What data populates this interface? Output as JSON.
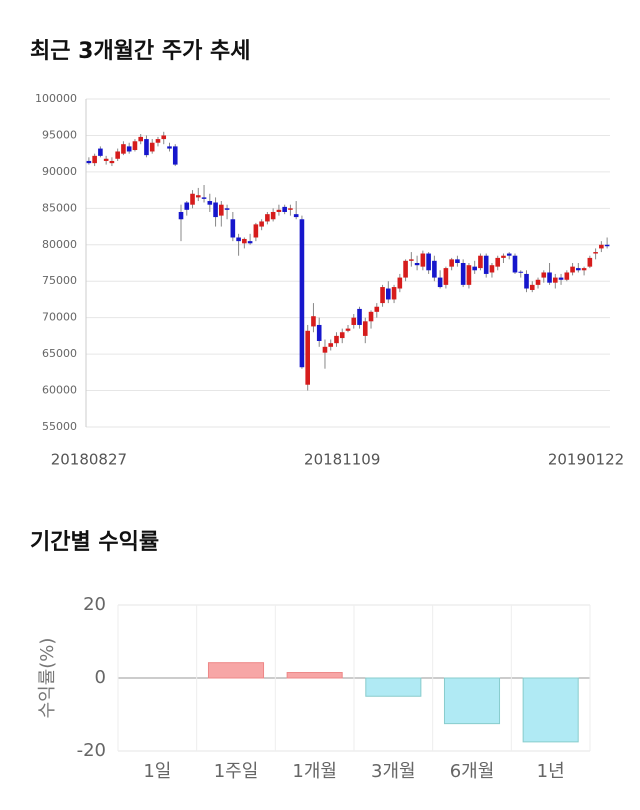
{
  "chart_data": [
    {
      "type": "candlestick",
      "title": "최근 3개월간 주가 추세",
      "categories": [
        "20180827",
        null,
        null,
        null,
        null,
        null,
        null,
        null,
        null,
        null,
        null,
        null,
        null,
        null,
        null,
        null,
        null,
        null,
        null,
        null,
        null,
        null,
        null,
        null,
        null,
        null,
        null,
        null,
        null,
        null,
        null,
        null,
        null,
        null,
        null,
        null,
        null,
        null,
        null,
        null,
        null,
        null,
        null,
        null,
        "20181109",
        null,
        null,
        null,
        null,
        null,
        null,
        null,
        null,
        null,
        null,
        null,
        null,
        null,
        null,
        null,
        null,
        null,
        null,
        null,
        null,
        null,
        null,
        null,
        null,
        null,
        null,
        null,
        null,
        null,
        null,
        null,
        null,
        null,
        null,
        null,
        null,
        null,
        null,
        null,
        null,
        null,
        null,
        null,
        null,
        null,
        "20190122"
      ],
      "open": [
        91500,
        91200,
        93200,
        91500,
        91200,
        91800,
        92500,
        93500,
        93000,
        94200,
        94500,
        92800,
        94000,
        94500,
        93500,
        93500,
        84500,
        85800,
        85500,
        86500,
        86500,
        86000,
        85800,
        84000,
        85000,
        83500,
        81000,
        80200,
        80500,
        81000,
        82500,
        83200,
        83500,
        84500,
        85200,
        84800,
        84200,
        83500,
        60800,
        68800,
        69000,
        65200,
        66000,
        66500,
        67200,
        68200,
        69000,
        71200,
        67500,
        69500,
        70800,
        72000,
        74000,
        72500,
        74000,
        75500,
        77800,
        77500,
        77000,
        78800,
        77800,
        75500,
        74500,
        77000,
        78000,
        77500,
        74500,
        77000,
        76800,
        78500,
        76200,
        77000,
        78200,
        78800,
        78500,
        76300,
        76000,
        73800,
        74500,
        75500,
        76200,
        74800,
        75500,
        75200,
        76200,
        76800,
        76500,
        77000,
        78800,
        79500,
        80000
      ],
      "high": [
        92000,
        92500,
        93500,
        92200,
        92000,
        93200,
        94200,
        94000,
        94500,
        95200,
        95000,
        94500,
        94800,
        95500,
        94000,
        93800,
        85500,
        86000,
        87500,
        87800,
        88200,
        87000,
        86500,
        86000,
        85500,
        84500,
        81500,
        81000,
        81500,
        83000,
        83500,
        84500,
        85000,
        85500,
        85500,
        85500,
        86000,
        84000,
        69000,
        72000,
        70000,
        67000,
        67000,
        68000,
        68500,
        69000,
        70500,
        71500,
        70000,
        71000,
        72000,
        74500,
        75000,
        74500,
        76000,
        78000,
        79000,
        78500,
        79200,
        79000,
        78500,
        76500,
        77000,
        78200,
        78500,
        78000,
        77500,
        77800,
        78800,
        78800,
        77500,
        78500,
        78800,
        79000,
        78800,
        76500,
        76500,
        75000,
        75500,
        76500,
        77500,
        76000,
        76000,
        76500,
        77500,
        77500,
        77000,
        78500,
        79500,
        80500,
        81000
      ],
      "low": [
        91000,
        90800,
        92000,
        91000,
        90800,
        91500,
        92300,
        92500,
        92800,
        93800,
        92000,
        92500,
        93500,
        93800,
        92800,
        90800,
        80500,
        84000,
        85000,
        86000,
        85800,
        84500,
        82500,
        82500,
        83500,
        80500,
        78500,
        79500,
        80000,
        80500,
        82000,
        82800,
        83200,
        84000,
        84200,
        84000,
        83500,
        63000,
        60000,
        68000,
        66000,
        63000,
        65500,
        66000,
        66500,
        68000,
        68500,
        68500,
        66500,
        68500,
        70000,
        71500,
        72000,
        72000,
        73500,
        75000,
        77000,
        76500,
        76500,
        76000,
        75000,
        74000,
        74000,
        76500,
        77000,
        74200,
        74000,
        76000,
        76500,
        75500,
        75500,
        76500,
        77500,
        78000,
        76000,
        75500,
        73500,
        73500,
        74000,
        74800,
        74500,
        74000,
        74500,
        75000,
        75800,
        76200,
        75800,
        76800,
        78000,
        79000,
        79500
      ],
      "close": [
        91200,
        92200,
        92200,
        91800,
        91500,
        92800,
        93800,
        92800,
        94200,
        94800,
        92300,
        94000,
        94500,
        95000,
        93200,
        91000,
        83500,
        84800,
        87000,
        86800,
        86300,
        85500,
        83800,
        85500,
        84800,
        81000,
        80500,
        80800,
        80200,
        82800,
        83200,
        84200,
        84500,
        84800,
        84500,
        85000,
        83800,
        63200,
        68200,
        70200,
        66800,
        66000,
        66500,
        67500,
        68000,
        68500,
        70000,
        69000,
        69500,
        70800,
        71500,
        74200,
        72500,
        74200,
        75500,
        77800,
        78000,
        77200,
        78800,
        76500,
        75500,
        74200,
        76800,
        78000,
        77500,
        74500,
        77200,
        76500,
        78500,
        76000,
        77200,
        78200,
        78500,
        78500,
        76200,
        76200,
        74000,
        74500,
        75200,
        76200,
        74800,
        75500,
        75200,
        76200,
        77000,
        76500,
        76800,
        78200,
        79000,
        80000,
        79800
      ],
      "up_color": "#d61c1c",
      "down_color": "#1616cc",
      "ylim": [
        55000,
        100000
      ],
      "yticks": [
        55000,
        60000,
        65000,
        70000,
        75000,
        80000,
        85000,
        90000,
        95000,
        100000
      ],
      "grid": true
    },
    {
      "type": "bar",
      "title": "기간별 수익률",
      "y_label": "수익률(%)",
      "categories": [
        "1일",
        "1주일",
        "1개월",
        "3개월",
        "6개월",
        "1년"
      ],
      "values": [
        0,
        4.2,
        1.5,
        -5,
        -12.5,
        -17.5
      ],
      "positive_color": "#f7a6a6",
      "negative_color": "#b0eaf4",
      "ylim": [
        -20,
        20
      ],
      "yticks": [
        -20,
        0,
        20
      ],
      "grid": true
    }
  ]
}
